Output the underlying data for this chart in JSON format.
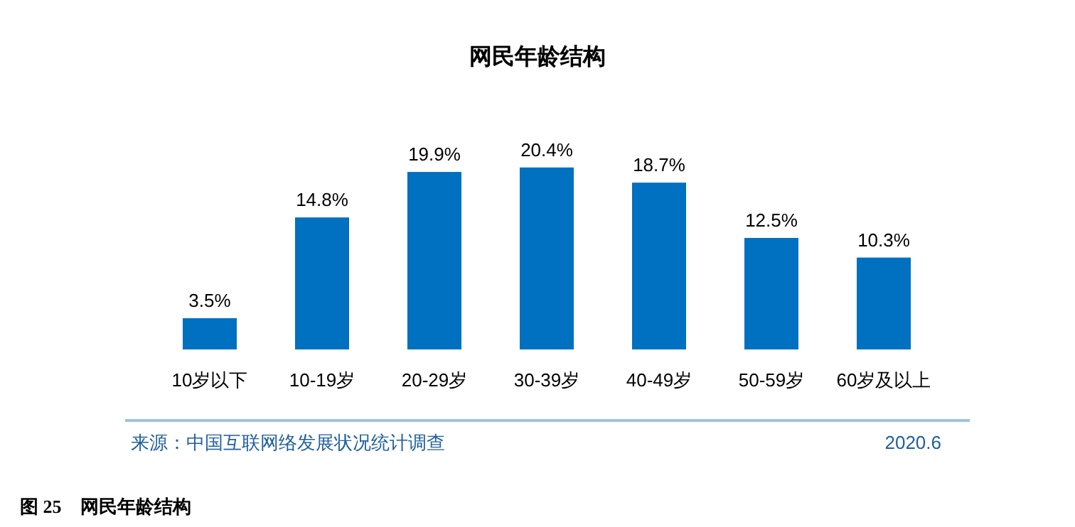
{
  "chart_data": {
    "type": "bar",
    "title": "网民年龄结构",
    "categories": [
      "10岁以下",
      "10-19岁",
      "20-29岁",
      "30-39岁",
      "40-49岁",
      "50-59岁",
      "60岁及以上"
    ],
    "values": [
      3.5,
      14.8,
      19.9,
      20.4,
      18.7,
      12.5,
      10.3
    ],
    "value_labels": [
      "3.5%",
      "14.8%",
      "19.9%",
      "20.4%",
      "18.7%",
      "12.5%",
      "10.3%"
    ],
    "color": "#0070c0",
    "annotations": [
      "来源：中国互联网络发展状况统计调查",
      "2020.6",
      "图 25　网民年龄结构"
    ]
  }
}
